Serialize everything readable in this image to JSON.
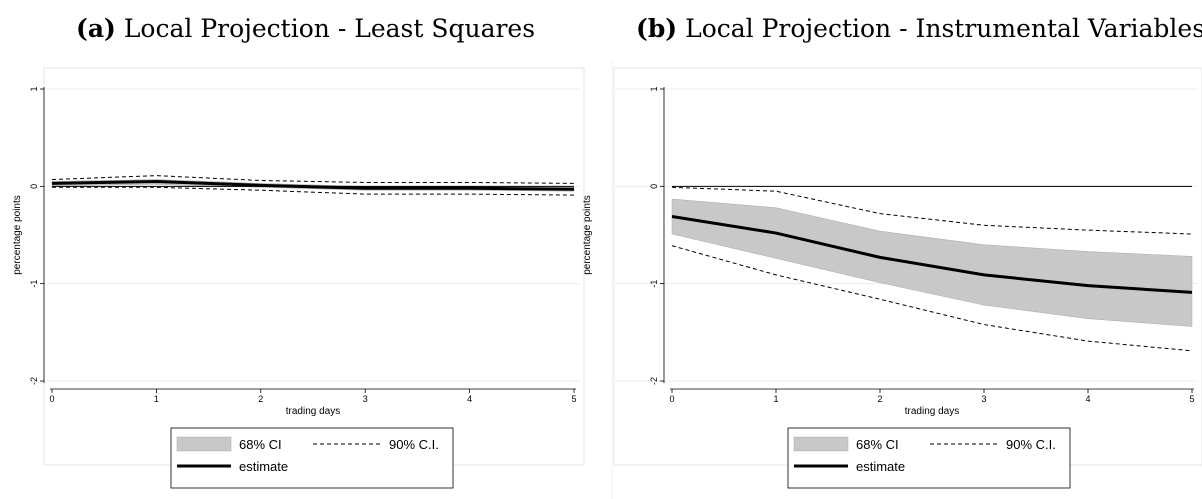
{
  "chart_data": [
    {
      "type": "line",
      "title_prefix": "(a)",
      "title": "Local Projection - Least Squares",
      "xlabel": "trading days",
      "ylabel": "percentage points",
      "xlim": [
        0,
        5
      ],
      "ylim": [
        -2,
        1
      ],
      "x_ticks": [
        0,
        1,
        2,
        3,
        4,
        5
      ],
      "y_ticks": [
        1,
        0,
        -1,
        -2
      ],
      "x": [
        0,
        1,
        2,
        3,
        4,
        5
      ],
      "series": [
        {
          "name": "estimate",
          "values": [
            0.03,
            0.05,
            0.01,
            -0.02,
            -0.02,
            -0.03
          ]
        },
        {
          "name": "68% CI",
          "lower": [
            0.01,
            0.02,
            -0.01,
            -0.04,
            -0.04,
            -0.05
          ],
          "upper": [
            0.05,
            0.07,
            0.03,
            0.0,
            0.0,
            -0.01
          ]
        },
        {
          "name": "90% C.I.",
          "lower": [
            -0.01,
            -0.01,
            -0.04,
            -0.08,
            -0.08,
            -0.09
          ],
          "upper": [
            0.07,
            0.11,
            0.06,
            0.04,
            0.04,
            0.03
          ]
        }
      ],
      "zero_line": true,
      "grid": true,
      "legend": {
        "placement": "bottom",
        "items": [
          "68% CI",
          "90% C.I.",
          "estimate"
        ]
      }
    },
    {
      "type": "line",
      "title_prefix": "(b)",
      "title": "Local Projection - Instrumental Variables",
      "xlabel": "trading days",
      "ylabel": "percentage points",
      "xlim": [
        0,
        5
      ],
      "ylim": [
        -2,
        1
      ],
      "x_ticks": [
        0,
        1,
        2,
        3,
        4,
        5
      ],
      "y_ticks": [
        1,
        0,
        -1,
        -2
      ],
      "x": [
        0,
        1,
        2,
        3,
        4,
        5
      ],
      "series": [
        {
          "name": "estimate",
          "values": [
            -0.31,
            -0.48,
            -0.73,
            -0.91,
            -1.02,
            -1.09
          ]
        },
        {
          "name": "68% CI",
          "lower": [
            -0.49,
            -0.74,
            -0.99,
            -1.22,
            -1.36,
            -1.44
          ],
          "upper": [
            -0.13,
            -0.22,
            -0.46,
            -0.6,
            -0.67,
            -0.72
          ]
        },
        {
          "name": "90% C.I.",
          "lower": [
            -0.61,
            -0.91,
            -1.16,
            -1.42,
            -1.59,
            -1.69
          ],
          "upper": [
            -0.01,
            -0.05,
            -0.28,
            -0.4,
            -0.45,
            -0.49
          ]
        }
      ],
      "zero_line": true,
      "grid": true,
      "legend": {
        "placement": "bottom",
        "items": [
          "68% CI",
          "90% C.I.",
          "estimate"
        ]
      }
    }
  ],
  "colors": {
    "band": "#c8c8c8",
    "band_edge": "#a8a8a8",
    "line": "#000000",
    "grid": "#ececec"
  }
}
